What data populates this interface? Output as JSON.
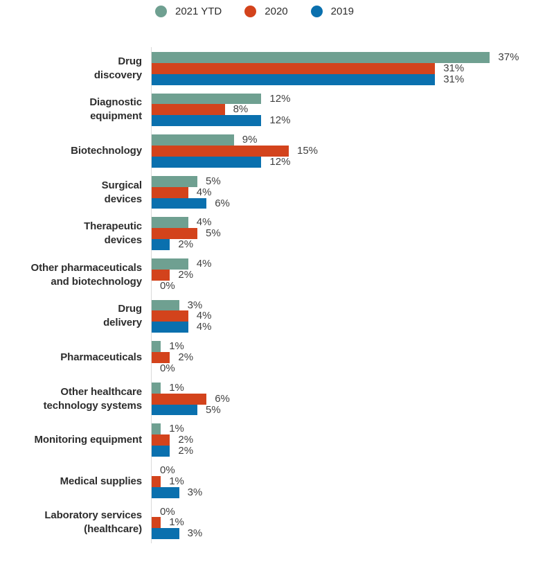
{
  "legend": {
    "items": [
      {
        "label": "2021 YTD",
        "color": "#6fa091"
      },
      {
        "label": "2020",
        "color": "#d3431c"
      },
      {
        "label": "2019",
        "color": "#0a70ae"
      }
    ]
  },
  "chart_data": {
    "type": "bar",
    "orientation": "horizontal",
    "value_unit": "%",
    "xlim": [
      0,
      40
    ],
    "grid": false,
    "legend_position": "top",
    "axis_line_color": "#d9d9d9",
    "category_text_color": "#2d2d2d",
    "value_text_color": "#3f3f3f",
    "categories": [
      "Drug\ndiscovery",
      "Diagnostic\nequipment",
      "Biotechnology",
      "Surgical\ndevices",
      "Therapeutic\ndevices",
      "Other pharmaceuticals\nand biotechnology",
      "Drug\ndelivery",
      "Pharmaceuticals",
      "Other healthcare\ntechnology systems",
      "Monitoring equipment",
      "Medical supplies",
      "Laboratory services\n(healthcare)"
    ],
    "series": [
      {
        "name": "2021 YTD",
        "color": "#6fa091",
        "values": [
          37,
          12,
          9,
          5,
          4,
          4,
          3,
          1,
          1,
          1,
          0,
          0
        ]
      },
      {
        "name": "2020",
        "color": "#d3431c",
        "values": [
          31,
          8,
          15,
          4,
          5,
          2,
          4,
          2,
          6,
          2,
          1,
          1
        ]
      },
      {
        "name": "2019",
        "color": "#0a70ae",
        "values": [
          31,
          12,
          12,
          6,
          2,
          0,
          4,
          0,
          5,
          2,
          3,
          3
        ]
      }
    ]
  }
}
